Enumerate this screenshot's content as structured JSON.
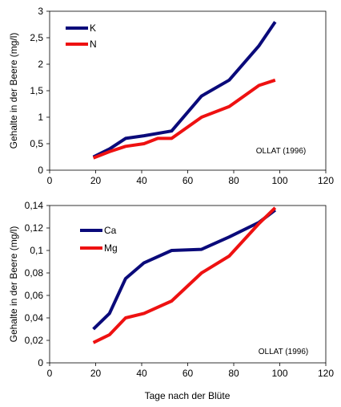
{
  "chart_data": [
    {
      "type": "line",
      "ylabel": "Gehalte in der Beere  (mg/l)",
      "xlabel": "",
      "xlim": [
        0,
        120
      ],
      "ylim": [
        0,
        3
      ],
      "x_ticks": [
        0,
        20,
        40,
        60,
        80,
        100,
        120
      ],
      "y_ticks": [
        0,
        0.5,
        1,
        1.5,
        2,
        2.5,
        3
      ],
      "y_tick_labels": [
        "0",
        "0,5",
        "1",
        "1,5",
        "2",
        "2,5",
        "3"
      ],
      "grid": false,
      "legend_position": "top-left",
      "annotation": "OLLAT (1996)",
      "series": [
        {
          "name": "K",
          "color": "#0a0a7a",
          "points": [
            [
              19,
              0.25
            ],
            [
              26,
              0.4
            ],
            [
              33,
              0.6
            ],
            [
              41,
              0.65
            ],
            [
              53,
              0.74
            ],
            [
              66,
              1.4
            ],
            [
              78,
              1.7
            ],
            [
              91,
              2.35
            ],
            [
              98,
              2.8
            ]
          ]
        },
        {
          "name": "N",
          "color": "#ee1111",
          "points": [
            [
              19,
              0.23
            ],
            [
              26,
              0.35
            ],
            [
              33,
              0.45
            ],
            [
              41,
              0.5
            ],
            [
              47,
              0.6
            ],
            [
              53,
              0.6
            ],
            [
              66,
              1.0
            ],
            [
              78,
              1.2
            ],
            [
              91,
              1.6
            ],
            [
              98,
              1.7
            ]
          ]
        }
      ]
    },
    {
      "type": "line",
      "ylabel": "Gehalte in der Beere  (mg/l)",
      "xlabel": "Tage nach der Blüte",
      "xlim": [
        0,
        120
      ],
      "ylim": [
        0,
        0.14
      ],
      "x_ticks": [
        0,
        20,
        40,
        60,
        80,
        100,
        120
      ],
      "y_ticks": [
        0,
        0.02,
        0.04,
        0.06,
        0.08,
        0.1,
        0.12,
        0.14
      ],
      "y_tick_labels": [
        "0",
        "0,02",
        "0,04",
        "0,06",
        "0,08",
        "0,1",
        "0,12",
        "0,14"
      ],
      "grid": false,
      "legend_position": "top-left",
      "annotation": "OLLAT (1996)",
      "series": [
        {
          "name": "Ca",
          "color": "#0a0a7a",
          "points": [
            [
              19,
              0.03
            ],
            [
              26,
              0.044
            ],
            [
              33,
              0.075
            ],
            [
              41,
              0.089
            ],
            [
              53,
              0.1
            ],
            [
              66,
              0.101
            ],
            [
              78,
              0.112
            ],
            [
              91,
              0.125
            ],
            [
              98,
              0.136
            ]
          ]
        },
        {
          "name": "Mg",
          "color": "#ee1111",
          "points": [
            [
              19,
              0.018
            ],
            [
              26,
              0.025
            ],
            [
              33,
              0.04
            ],
            [
              41,
              0.044
            ],
            [
              53,
              0.055
            ],
            [
              66,
              0.08
            ],
            [
              78,
              0.095
            ],
            [
              91,
              0.124
            ],
            [
              98,
              0.138
            ]
          ]
        }
      ]
    }
  ]
}
